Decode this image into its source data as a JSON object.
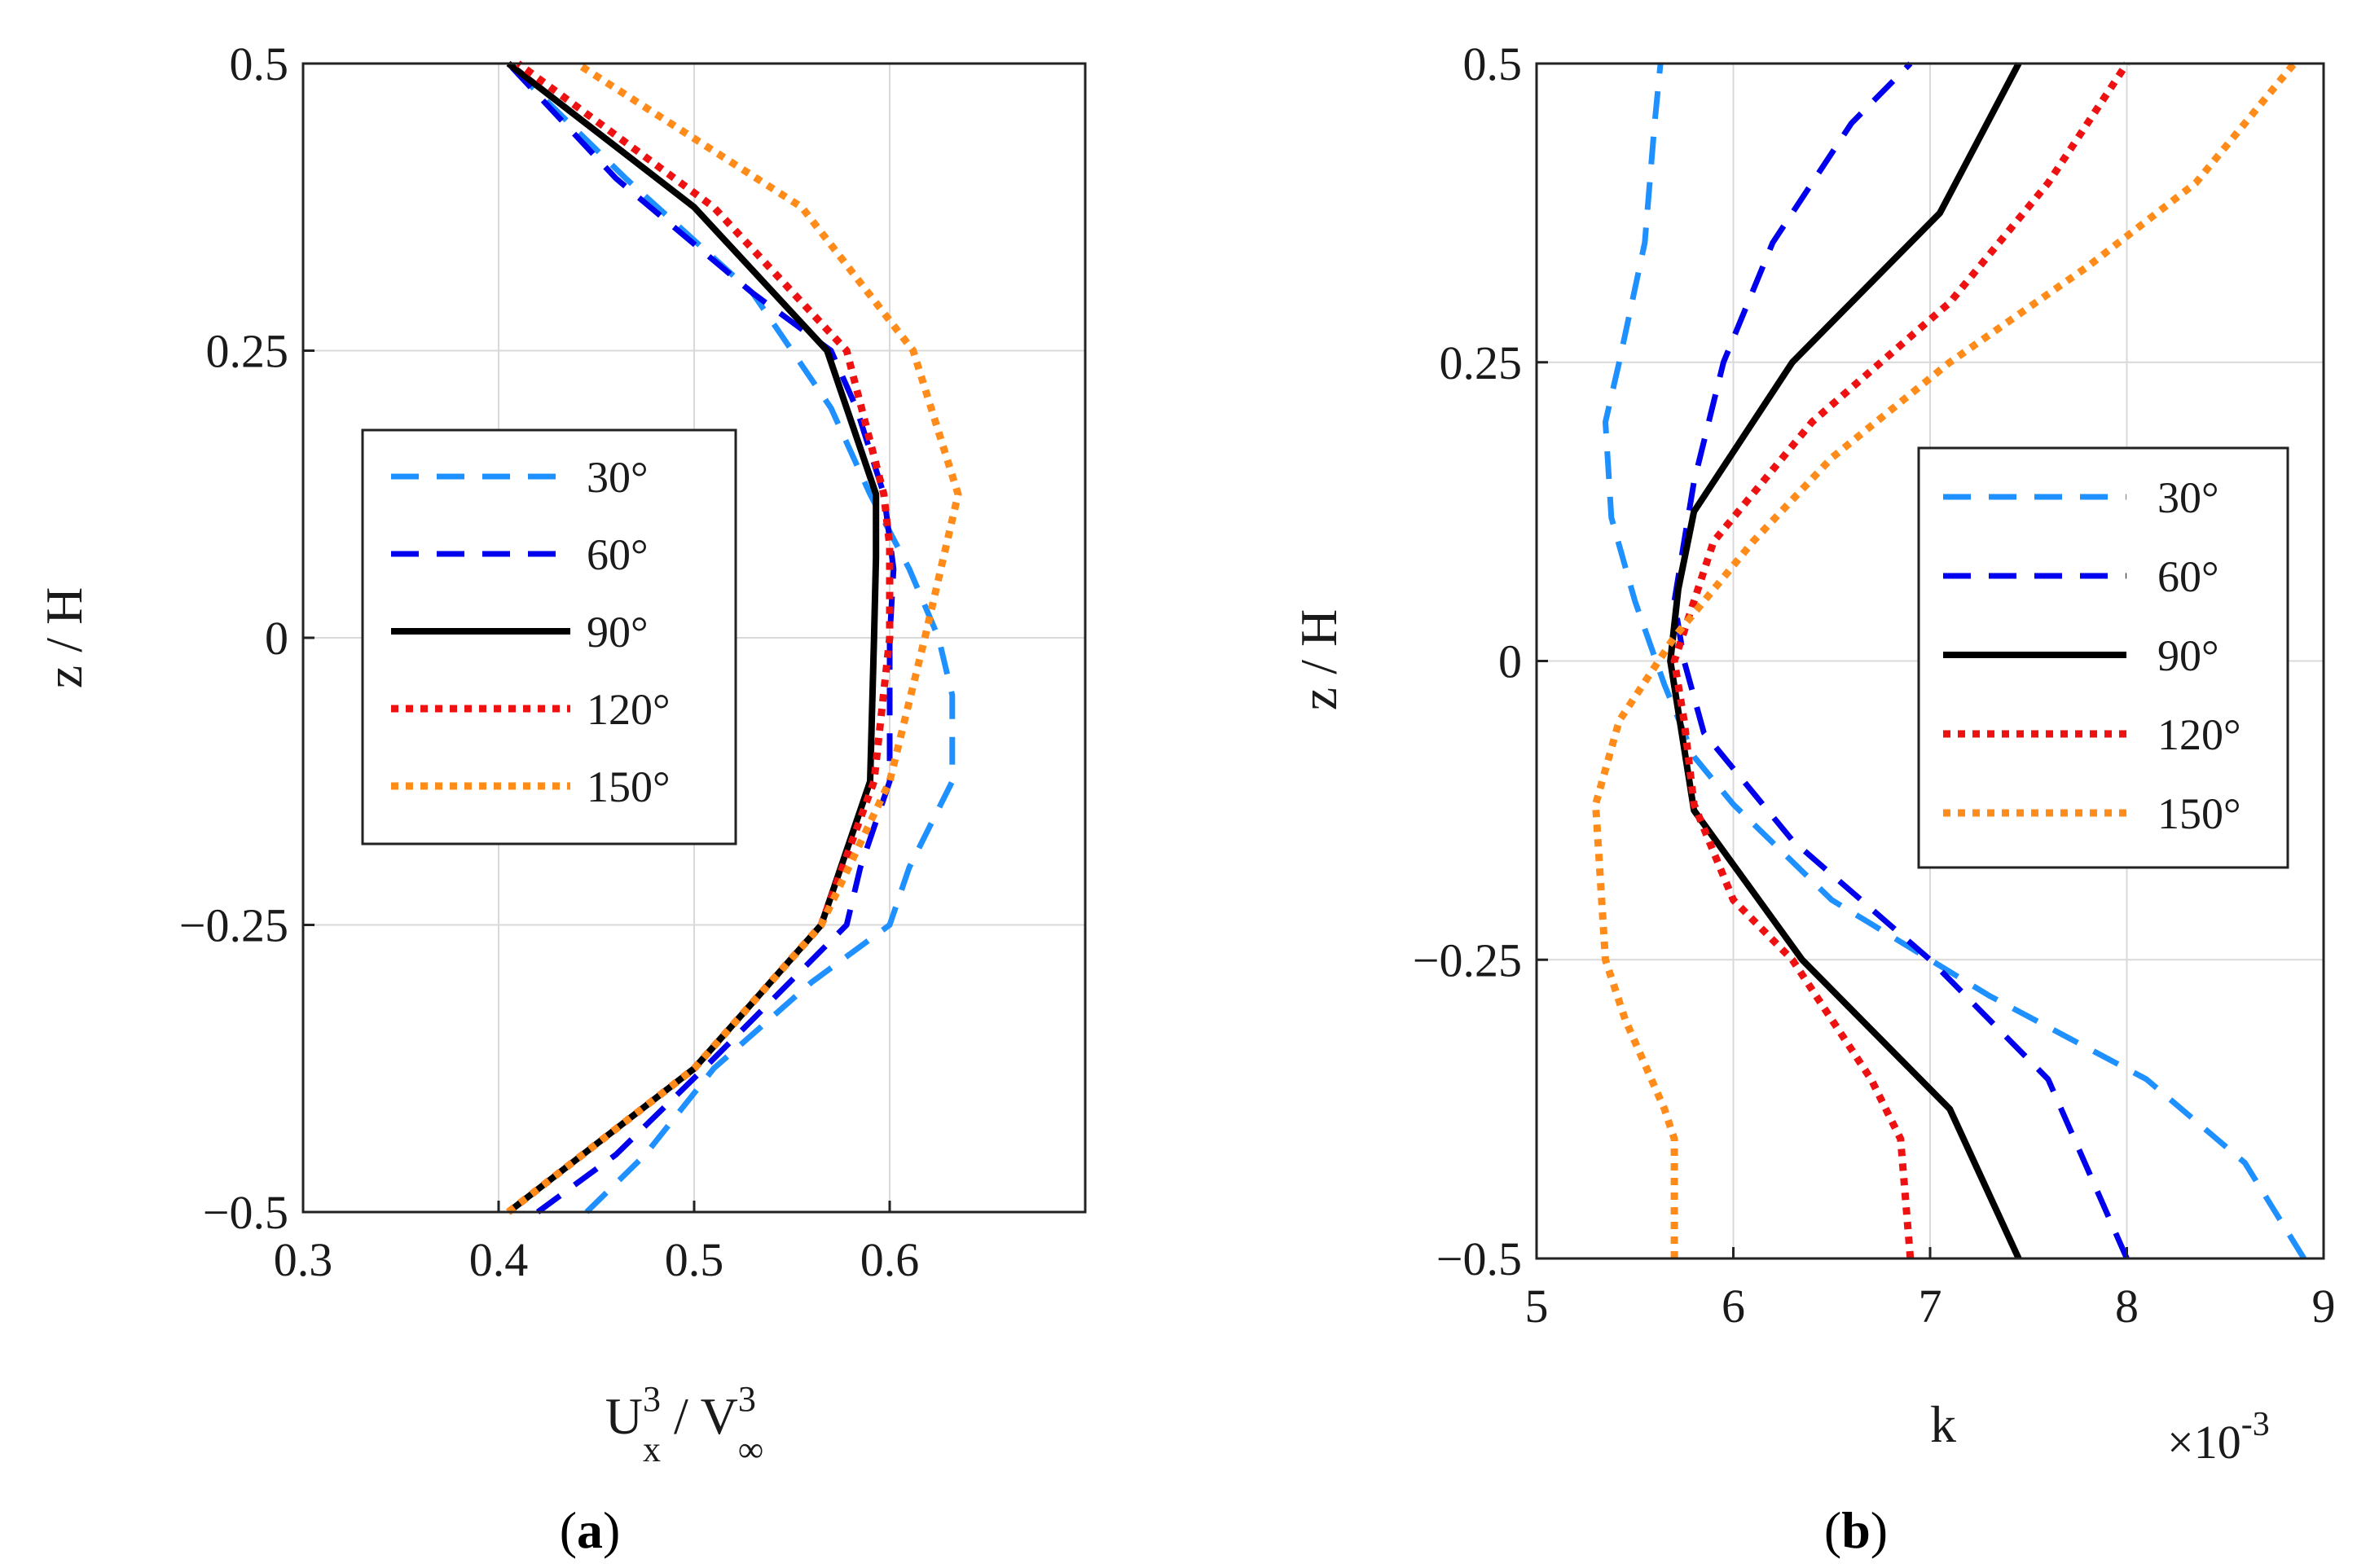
{
  "chart_data": [
    {
      "type": "line",
      "panel": "a",
      "caption": {
        "open": "(",
        "letter": "a",
        "close": ")"
      },
      "xlabel": {
        "base1": "U",
        "sup1": "3",
        "sub1": "x",
        "slash": " / ",
        "base2": "V",
        "sup2": "3",
        "sub2": "∞"
      },
      "ylabel": "z / H",
      "xlim": [
        0.3,
        0.7
      ],
      "ylim": [
        -0.5,
        0.5
      ],
      "xticks": [
        {
          "v": 0.3,
          "label": "0.3"
        },
        {
          "v": 0.4,
          "label": "0.4"
        },
        {
          "v": 0.5,
          "label": "0.5"
        },
        {
          "v": 0.6,
          "label": "0.6"
        }
      ],
      "yticks": [
        {
          "v": -0.5,
          "label": "−0.5"
        },
        {
          "v": -0.25,
          "label": "−0.25"
        },
        {
          "v": 0,
          "label": "0"
        },
        {
          "v": 0.25,
          "label": "0.25"
        },
        {
          "v": 0.5,
          "label": "0.5"
        }
      ],
      "grid": true,
      "legend_position": "center-left",
      "series": [
        {
          "name": "30°",
          "color": "#1E90FF",
          "style": "dashed",
          "x": [
            0.445,
            0.475,
            0.51,
            0.56,
            0.6,
            0.61,
            0.632,
            0.632,
            0.625,
            0.61,
            0.59,
            0.57,
            0.53,
            0.465,
            0.405
          ],
          "y": [
            -0.5,
            -0.45,
            -0.375,
            -0.3,
            -0.25,
            -0.2,
            -0.125,
            -0.05,
            0,
            0.06,
            0.125,
            0.2,
            0.3,
            0.4,
            0.5
          ]
        },
        {
          "name": "60°",
          "color": "#0000EE",
          "style": "dashed",
          "x": [
            0.42,
            0.46,
            0.505,
            0.578,
            0.585,
            0.6,
            0.6,
            0.602,
            0.597,
            0.583,
            0.57,
            0.53,
            0.46,
            0.405
          ],
          "y": [
            -0.5,
            -0.45,
            -0.375,
            -0.25,
            -0.2,
            -0.125,
            0,
            0.06,
            0.125,
            0.2,
            0.25,
            0.3,
            0.4,
            0.5
          ]
        },
        {
          "name": "90°",
          "color": "#000000",
          "style": "solid",
          "x": [
            0.405,
            0.5,
            0.565,
            0.59,
            0.592,
            0.593,
            0.593,
            0.568,
            0.5,
            0.405
          ],
          "y": [
            -0.5,
            -0.375,
            -0.25,
            -0.125,
            0,
            0.07,
            0.125,
            0.25,
            0.375,
            0.5
          ]
        },
        {
          "name": "120°",
          "color": "#EE1111",
          "style": "dotted",
          "x": [
            0.405,
            0.5,
            0.565,
            0.592,
            0.6,
            0.6,
            0.597,
            0.578,
            0.51,
            0.41
          ],
          "y": [
            -0.5,
            -0.375,
            -0.25,
            -0.125,
            0,
            0.08,
            0.125,
            0.25,
            0.375,
            0.5
          ]
        },
        {
          "name": "150°",
          "color": "#FF8C1A",
          "style": "dotted",
          "x": [
            0.405,
            0.5,
            0.565,
            0.6,
            0.618,
            0.635,
            0.612,
            0.555,
            0.44
          ],
          "y": [
            -0.5,
            -0.375,
            -0.25,
            -0.125,
            0,
            0.125,
            0.25,
            0.375,
            0.5
          ]
        }
      ]
    },
    {
      "type": "line",
      "panel": "b",
      "caption": {
        "open": "(",
        "letter": "b",
        "close": ")"
      },
      "xlabel": {
        "text": "k",
        "multiplier": "×10",
        "exponent": "-3"
      },
      "ylabel": "z / H",
      "xlim": [
        5,
        9
      ],
      "ylim": [
        -0.5,
        0.5
      ],
      "xticks": [
        {
          "v": 5,
          "label": "5"
        },
        {
          "v": 6,
          "label": "6"
        },
        {
          "v": 7,
          "label": "7"
        },
        {
          "v": 8,
          "label": "8"
        },
        {
          "v": 9,
          "label": "9"
        }
      ],
      "yticks": [
        {
          "v": -0.5,
          "label": "−0.5"
        },
        {
          "v": -0.25,
          "label": "−0.25"
        },
        {
          "v": 0,
          "label": "0"
        },
        {
          "v": 0.25,
          "label": "0.25"
        },
        {
          "v": 0.5,
          "label": "0.5"
        }
      ],
      "grid": true,
      "legend_position": "center-right",
      "series": [
        {
          "name": "30°",
          "color": "#1E90FF",
          "style": "dashed",
          "x": [
            8.9,
            8.6,
            8.1,
            7.3,
            6.5,
            6.0,
            5.8,
            5.65,
            5.5,
            5.38,
            5.35,
            5.42,
            5.55,
            5.6,
            5.63
          ],
          "y": [
            -0.5,
            -0.42,
            -0.35,
            -0.28,
            -0.2,
            -0.12,
            -0.08,
            -0.02,
            0.05,
            0.12,
            0.2,
            0.25,
            0.35,
            0.45,
            0.5
          ]
        },
        {
          "name": "60°",
          "color": "#0000EE",
          "style": "dashed",
          "x": [
            8.0,
            7.6,
            7.0,
            6.3,
            5.85,
            5.75,
            5.7,
            5.75,
            5.8,
            5.95,
            6.2,
            6.6,
            6.9
          ],
          "y": [
            -0.5,
            -0.35,
            -0.25,
            -0.15,
            -0.06,
            0,
            0.05,
            0.1,
            0.15,
            0.25,
            0.35,
            0.45,
            0.5
          ]
        },
        {
          "name": "90°",
          "color": "#000000",
          "style": "solid",
          "x": [
            7.45,
            7.1,
            6.35,
            5.8,
            5.68,
            5.72,
            5.8,
            6.3,
            7.05,
            7.45
          ],
          "y": [
            -0.5,
            -0.375,
            -0.25,
            -0.125,
            0,
            0.06,
            0.125,
            0.25,
            0.375,
            0.5
          ]
        },
        {
          "name": "120°",
          "color": "#EE1111",
          "style": "dotted",
          "x": [
            6.9,
            6.85,
            6.7,
            6.3,
            6.0,
            5.8,
            5.75,
            5.7,
            5.9,
            6.4,
            7.1,
            7.6,
            8.0
          ],
          "y": [
            -0.5,
            -0.4,
            -0.35,
            -0.25,
            -0.2,
            -0.12,
            -0.05,
            0,
            0.1,
            0.2,
            0.3,
            0.4,
            0.5
          ]
        },
        {
          "name": "150°",
          "color": "#FF8C1A",
          "style": "dotted",
          "x": [
            5.7,
            5.7,
            5.65,
            5.45,
            5.35,
            5.3,
            5.42,
            5.7,
            6.1,
            6.5,
            7.1,
            7.8,
            8.35,
            8.85
          ],
          "y": [
            -0.5,
            -0.4,
            -0.375,
            -0.3,
            -0.25,
            -0.12,
            -0.05,
            0.02,
            0.1,
            0.17,
            0.25,
            0.33,
            0.4,
            0.5
          ]
        }
      ]
    }
  ]
}
